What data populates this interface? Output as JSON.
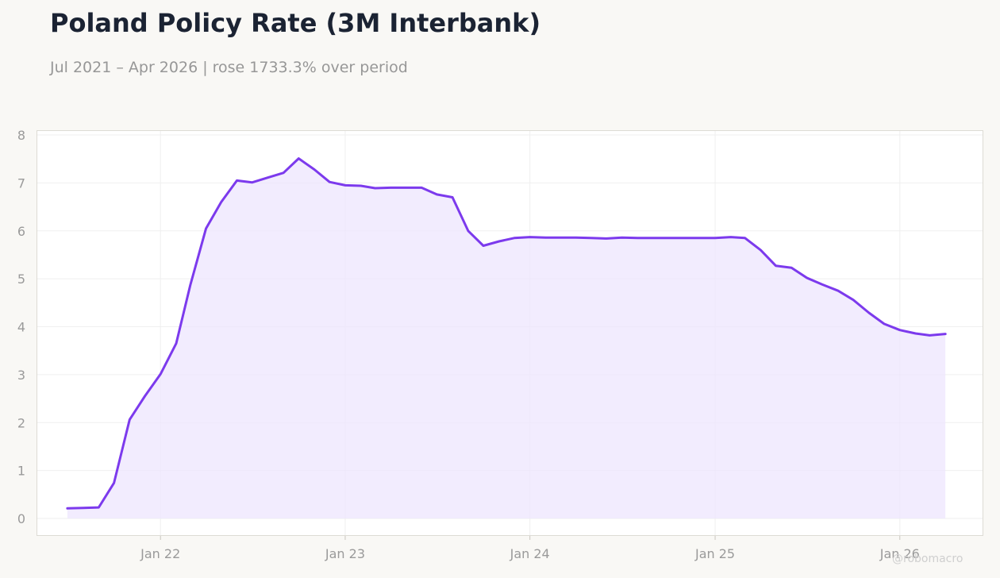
{
  "header": {
    "title": "Poland Policy Rate (3M Interbank)",
    "subtitle": "Jul 2021 – Apr 2026 | rose 1733.3% over period"
  },
  "watermark": "@robomacro",
  "colors": {
    "background": "#f9f8f5",
    "plot_background": "#ffffff",
    "line": "#7c3aed",
    "fill": "#ede5fd",
    "grid": "#efefef",
    "frame": "#dddbd4",
    "tick_text": "#9a9a9a",
    "title": "#1b2333"
  },
  "chart_data": {
    "type": "area",
    "title": "Poland Policy Rate (3M Interbank)",
    "subtitle": "Jul 2021 – Apr 2026 | rose 1733.3% over period",
    "xlabel": "",
    "ylabel": "",
    "ylim": [
      0,
      8
    ],
    "yticks": [
      0,
      1,
      2,
      3,
      4,
      5,
      6,
      7,
      8
    ],
    "xlim": [
      "2021-05-01",
      "2026-06-15"
    ],
    "xticks": [
      {
        "date": "2022-01-01",
        "label": "Jan 22"
      },
      {
        "date": "2023-01-01",
        "label": "Jan 23"
      },
      {
        "date": "2024-01-01",
        "label": "Jan 24"
      },
      {
        "date": "2025-01-01",
        "label": "Jan 25"
      },
      {
        "date": "2026-01-01",
        "label": "Jan 26"
      }
    ],
    "grid": true,
    "legend": "none",
    "series": [
      {
        "points": [
          [
            "2021-07-01",
            0.21
          ],
          [
            "2021-08-01",
            0.22
          ],
          [
            "2021-09-01",
            0.23
          ],
          [
            "2021-10-01",
            0.74
          ],
          [
            "2021-11-01",
            2.06
          ],
          [
            "2021-12-01",
            2.55
          ],
          [
            "2022-01-01",
            3.01
          ],
          [
            "2022-02-01",
            3.65
          ],
          [
            "2022-03-01",
            4.87
          ],
          [
            "2022-04-01",
            6.05
          ],
          [
            "2022-05-01",
            6.6
          ],
          [
            "2022-06-01",
            7.05
          ],
          [
            "2022-07-01",
            7.01
          ],
          [
            "2022-08-01",
            7.11
          ],
          [
            "2022-09-01",
            7.21
          ],
          [
            "2022-10-01",
            7.51
          ],
          [
            "2022-11-01",
            7.28
          ],
          [
            "2022-12-01",
            7.02
          ],
          [
            "2023-01-01",
            6.95
          ],
          [
            "2023-02-01",
            6.94
          ],
          [
            "2023-03-01",
            6.89
          ],
          [
            "2023-04-01",
            6.9
          ],
          [
            "2023-05-01",
            6.9
          ],
          [
            "2023-06-01",
            6.9
          ],
          [
            "2023-07-01",
            6.76
          ],
          [
            "2023-08-01",
            6.7
          ],
          [
            "2023-09-01",
            6.0
          ],
          [
            "2023-10-01",
            5.69
          ],
          [
            "2023-11-01",
            5.78
          ],
          [
            "2023-12-01",
            5.85
          ],
          [
            "2024-01-01",
            5.87
          ],
          [
            "2024-02-01",
            5.86
          ],
          [
            "2024-03-01",
            5.86
          ],
          [
            "2024-04-01",
            5.86
          ],
          [
            "2024-05-01",
            5.85
          ],
          [
            "2024-06-01",
            5.84
          ],
          [
            "2024-07-01",
            5.86
          ],
          [
            "2024-08-01",
            5.85
          ],
          [
            "2024-09-01",
            5.85
          ],
          [
            "2024-10-01",
            5.85
          ],
          [
            "2024-11-01",
            5.85
          ],
          [
            "2024-12-01",
            5.85
          ],
          [
            "2025-01-01",
            5.85
          ],
          [
            "2025-02-01",
            5.87
          ],
          [
            "2025-03-01",
            5.85
          ],
          [
            "2025-04-01",
            5.6
          ],
          [
            "2025-05-01",
            5.27
          ],
          [
            "2025-06-01",
            5.23
          ],
          [
            "2025-07-01",
            5.02
          ],
          [
            "2025-08-01",
            4.88
          ],
          [
            "2025-09-01",
            4.75
          ],
          [
            "2025-10-01",
            4.56
          ],
          [
            "2025-11-01",
            4.29
          ],
          [
            "2025-12-01",
            4.06
          ],
          [
            "2026-01-01",
            3.93
          ],
          [
            "2026-02-01",
            3.86
          ],
          [
            "2026-03-01",
            3.82
          ],
          [
            "2026-04-01",
            3.85
          ]
        ]
      }
    ]
  }
}
